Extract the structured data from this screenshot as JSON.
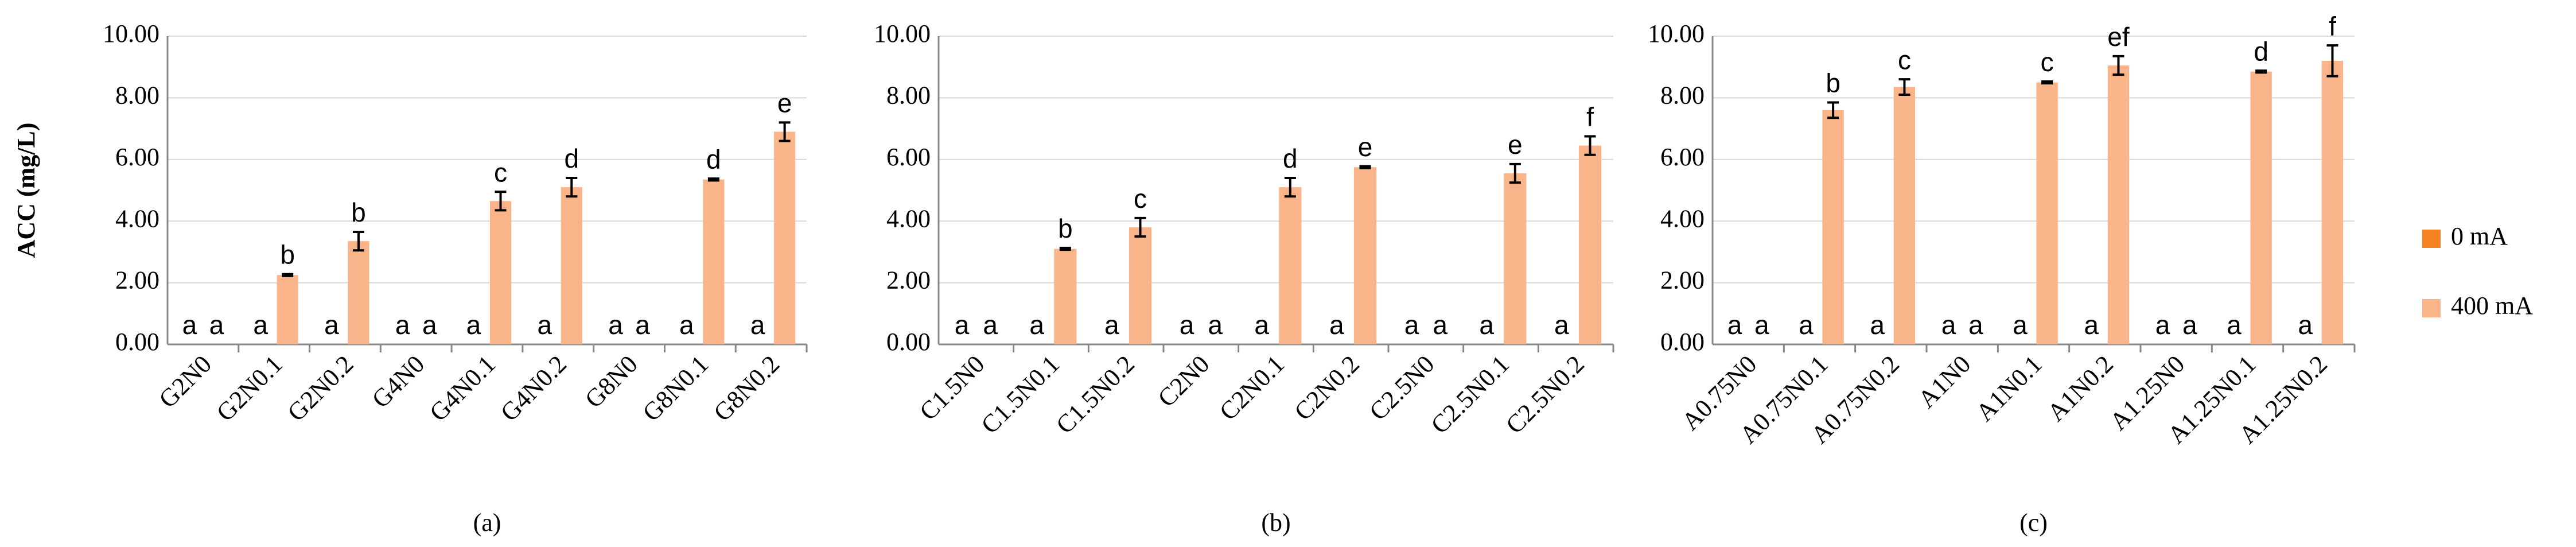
{
  "chart_data": [
    {
      "type": "bar",
      "caption": "(a)",
      "y_label": "ACC (mg/L)",
      "categories": [
        "G2N0",
        "G2N0.1",
        "G2N0.2",
        "G4N0",
        "G4N0.1",
        "G4N0.2",
        "G8N0",
        "G8N0.1",
        "G8N0.2"
      ],
      "series": [
        {
          "color": "#f58220",
          "values": [
            0,
            0,
            0,
            0,
            0,
            0,
            0,
            0,
            0
          ],
          "letters": [
            "a",
            "a",
            "a",
            "a",
            "a",
            "a",
            "a",
            "a",
            "a"
          ]
        },
        {
          "color": "#f9b48a",
          "values": [
            0,
            2.25,
            3.35,
            0,
            4.65,
            5.1,
            0,
            5.35,
            6.9
          ],
          "errors": [
            0,
            0.03,
            0.3,
            0,
            0.3,
            0.3,
            0,
            0.03,
            0.3
          ],
          "letters": [
            "a",
            "b",
            "b",
            "a",
            "c",
            "d",
            "a",
            "d",
            "e"
          ]
        }
      ],
      "ylim": [
        0,
        10
      ],
      "yticks": [
        {
          "value": 0,
          "label": "0.00"
        },
        {
          "value": 2,
          "label": "2.00"
        },
        {
          "value": 4,
          "label": "4.00"
        },
        {
          "value": 6,
          "label": "6.00"
        },
        {
          "value": 8,
          "label": "8.00"
        },
        {
          "value": 10,
          "label": "10.00"
        }
      ],
      "grid": true
    },
    {
      "type": "bar",
      "caption": "(b)",
      "categories": [
        "C1.5N0",
        "C1.5N0.1",
        "C1.5N0.2",
        "C2N0",
        "C2N0.1",
        "C2N0.2",
        "C2.5N0",
        "C2.5N0.1",
        "C2.5N0.2"
      ],
      "series": [
        {
          "color": "#f58220",
          "values": [
            0,
            0,
            0,
            0,
            0,
            0,
            0,
            0,
            0
          ],
          "letters": [
            "a",
            "a",
            "a",
            "a",
            "a",
            "a",
            "a",
            "a",
            "a"
          ]
        },
        {
          "color": "#f9b48a",
          "values": [
            0,
            3.1,
            3.8,
            0,
            5.1,
            5.75,
            0,
            5.55,
            6.45
          ],
          "errors": [
            0,
            0.03,
            0.3,
            0,
            0.3,
            0.03,
            0,
            0.3,
            0.3
          ],
          "letters": [
            "a",
            "b",
            "c",
            "a",
            "d",
            "e",
            "a",
            "e",
            "f"
          ]
        }
      ],
      "ylim": [
        0,
        10
      ],
      "yticks": [
        {
          "value": 0,
          "label": "0.00"
        },
        {
          "value": 2,
          "label": "2.00"
        },
        {
          "value": 4,
          "label": "4.00"
        },
        {
          "value": 6,
          "label": "6.00"
        },
        {
          "value": 8,
          "label": "8.00"
        },
        {
          "value": 10,
          "label": "10.00"
        }
      ],
      "grid": true
    },
    {
      "type": "bar",
      "caption": "(c)",
      "legend": "right",
      "categories": [
        "A0.75N0",
        "A0.75N0.1",
        "A0.75N0.2",
        "A1N0",
        "A1N0.1",
        "A1N0.2",
        "A1.25N0",
        "A1.25N0.1",
        "A1.25N0.2"
      ],
      "series": [
        {
          "name": "0 mA",
          "color": "#f58220",
          "values": [
            0,
            0,
            0,
            0,
            0,
            0,
            0,
            0,
            0
          ],
          "letters": [
            "a",
            "a",
            "a",
            "a",
            "a",
            "a",
            "a",
            "a",
            "a"
          ]
        },
        {
          "name": "400 mA",
          "color": "#f9b48a",
          "values": [
            0,
            7.6,
            8.35,
            0,
            8.5,
            9.05,
            0,
            8.85,
            9.2
          ],
          "errors": [
            0,
            0.25,
            0.25,
            0,
            0.03,
            0.3,
            0,
            0.03,
            0.5
          ],
          "letters": [
            "a",
            "b",
            "c",
            "a",
            "c",
            "ef",
            "a",
            "d",
            "f"
          ]
        }
      ],
      "ylim": [
        0,
        10
      ],
      "yticks": [
        {
          "value": 0,
          "label": "0.00"
        },
        {
          "value": 2,
          "label": "2.00"
        },
        {
          "value": 4,
          "label": "4.00"
        },
        {
          "value": 6,
          "label": "6.00"
        },
        {
          "value": 8,
          "label": "8.00"
        },
        {
          "value": 10,
          "label": "10.00"
        }
      ],
      "grid": true
    }
  ]
}
